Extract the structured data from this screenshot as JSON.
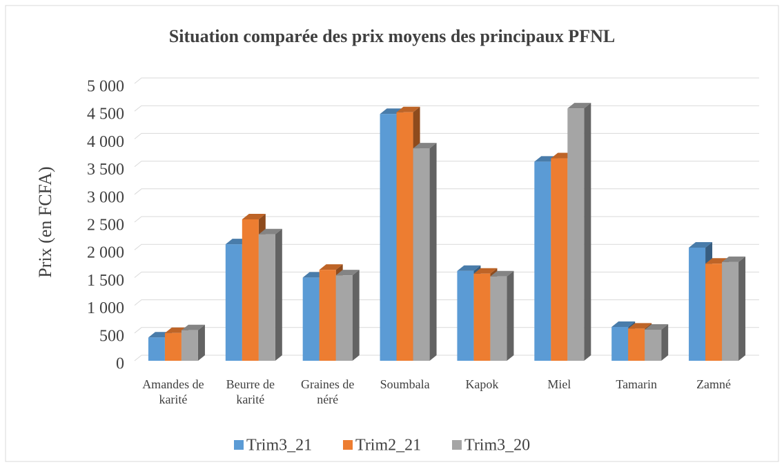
{
  "chart_data": {
    "type": "bar3d",
    "title": "Situation comparée des prix moyens des principaux PFNL",
    "y_label": "Prix (en FCFA)",
    "categories": [
      "Amandes de karité",
      "Beurre de karité",
      "Graines de néré",
      "Soumbala",
      "Kapok",
      "Miel",
      "Tamarin",
      "Zamné"
    ],
    "series": [
      {
        "name": "Trim3_21",
        "color": "#5b9bd5",
        "values": [
          420,
          2100,
          1500,
          4450,
          1620,
          3590,
          610,
          2040
        ]
      },
      {
        "name": "Trim2_21",
        "color": "#ed7d31",
        "values": [
          500,
          2550,
          1640,
          4480,
          1570,
          3650,
          580,
          1750
        ]
      },
      {
        "name": "Trim3_20",
        "color": "#a5a5a5",
        "values": [
          550,
          2280,
          1540,
          3830,
          1520,
          4550,
          560,
          1780
        ]
      }
    ],
    "ylim": [
      0,
      5000
    ],
    "yticks": [
      0,
      500,
      {
        "value": 1000,
        "label": "1 000"
      },
      {
        "value": 1500,
        "label": "1 500"
      },
      {
        "value": 2000,
        "label": "2 000"
      },
      {
        "value": 2500,
        "label": "2 500"
      },
      {
        "value": 3000,
        "label": "3 000"
      },
      {
        "value": 3500,
        "label": "3 500"
      },
      {
        "value": 4000,
        "label": "4 000"
      },
      {
        "value": 4500,
        "label": "4 500"
      },
      {
        "value": 5000,
        "label": "5 000"
      }
    ],
    "grid": true,
    "legend": "bottom"
  }
}
